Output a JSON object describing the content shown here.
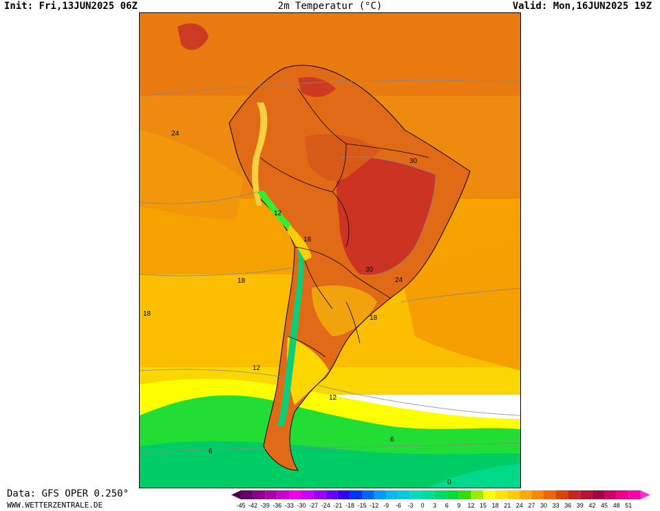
{
  "header": {
    "init": "Init: Fri,13JUN2025 06Z",
    "title": "2m Temperatur (°C)",
    "valid": "Valid: Mon,16JUN2025 19Z"
  },
  "footer": {
    "source": "Data: GFS OPER 0.250°",
    "site": "WWW.WETTERZENTRALE.DE"
  },
  "map": {
    "region": "South America",
    "contour_labels": [
      "24",
      "30",
      "12",
      "18",
      "18",
      "30",
      "24",
      "18",
      "18",
      "12",
      "12",
      "6",
      "6",
      "0"
    ]
  },
  "colorbar": {
    "labels": [
      "-45",
      "-42",
      "-39",
      "-36",
      "-33",
      "-30",
      "-27",
      "-24",
      "-21",
      "-18",
      "-15",
      "-12",
      "-9",
      "-6",
      "-3",
      "0",
      "3",
      "6",
      "9",
      "12",
      "15",
      "18",
      "21",
      "24",
      "27",
      "30",
      "33",
      "36",
      "39",
      "42",
      "45",
      "48",
      "51"
    ],
    "colors": [
      "#660066",
      "#880088",
      "#aa00aa",
      "#cc00cc",
      "#ee00ee",
      "#cc00ff",
      "#9900ff",
      "#6600ff",
      "#3300ff",
      "#0033ff",
      "#0066ff",
      "#0099ff",
      "#00bbee",
      "#00ccdd",
      "#00ddbb",
      "#00dd99",
      "#00dd66",
      "#00dd33",
      "#33dd00",
      "#99ee00",
      "#ffff00",
      "#ffe600",
      "#ffcc00",
      "#ffaa00",
      "#ff8800",
      "#ee6600",
      "#dd4400",
      "#cc2222",
      "#bb1133",
      "#aa0044",
      "#cc0066",
      "#ee0088",
      "#ff00aa"
    ],
    "low_color": "#4d004d",
    "high_color": "#ff33cc"
  }
}
